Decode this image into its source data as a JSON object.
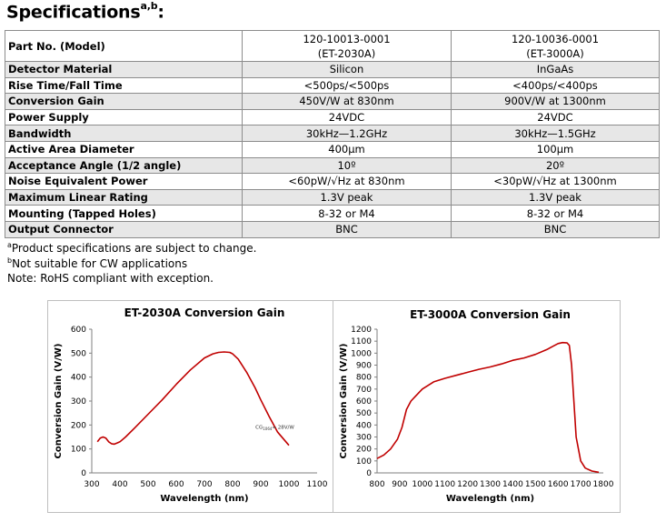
{
  "heading": {
    "title": "Specifications",
    "superscript": "a,b",
    "colon": ":"
  },
  "table": {
    "rows": [
      {
        "param": "Part No. (Model)",
        "col1": [
          "120-10013-0001",
          "(ET-2030A)"
        ],
        "col2": [
          "120-10036-0001",
          "(ET-3000A)"
        ]
      },
      {
        "param": "Detector Material",
        "col1": "Silicon",
        "col2": "InGaAs"
      },
      {
        "param": "Rise Time/Fall Time",
        "col1": "<500ps/<500ps",
        "col2": "<400ps/<400ps"
      },
      {
        "param": "Conversion Gain",
        "col1": "450V/W at 830nm",
        "col2": "900V/W at 1300nm"
      },
      {
        "param": "Power Supply",
        "col1": "24VDC",
        "col2": "24VDC"
      },
      {
        "param": "Bandwidth",
        "col1": "30kHz—1.2GHz",
        "col2": "30kHz—1.5GHz"
      },
      {
        "param": "Active Area Diameter",
        "col1": "400µm",
        "col2": "100µm"
      },
      {
        "param": "Acceptance Angle (1/2 angle)",
        "col1": "10º",
        "col2": "20º"
      },
      {
        "param": "Noise Equivalent Power",
        "col1": "<60pW/√Hz at 830nm",
        "col2": "<30pW/√Hz at 1300nm"
      },
      {
        "param": "Maximum Linear Rating",
        "col1": "1.3V peak",
        "col2": "1.3V peak"
      },
      {
        "param": "Mounting (Tapped Holes)",
        "col1": "8-32 or M4",
        "col2": "8-32 or M4"
      },
      {
        "param": "Output Connector",
        "col1": "BNC",
        "col2": "BNC"
      }
    ]
  },
  "notes": {
    "a": {
      "mark": "a",
      "text": "Product specifications are subject to change."
    },
    "b": {
      "mark": "b",
      "text": "Not suitable for CW applications"
    },
    "c": {
      "text": "Note: RoHS compliant with exception."
    }
  },
  "chart_data": [
    {
      "type": "line",
      "title": "ET-2030A Conversion Gain",
      "xlabel": "Wavelength (nm)",
      "ylabel": "Conversion Gain (V/W)",
      "xlim": [
        300,
        1100
      ],
      "ylim": [
        0,
        600
      ],
      "xticks": [
        300,
        400,
        500,
        600,
        700,
        800,
        900,
        1000,
        1100
      ],
      "yticks": [
        0,
        100,
        200,
        300,
        400,
        500,
        600
      ],
      "grid": false,
      "color": "#c00000",
      "annotation": {
        "text": "CG",
        "sub": "1064",
        "text2": "= 28V/W",
        "x": 950,
        "y": 185
      },
      "series": [
        {
          "x": [
            320,
            330,
            340,
            350,
            360,
            370,
            380,
            390,
            400,
            420,
            450,
            500,
            550,
            600,
            650,
            700,
            730,
            750,
            770,
            790,
            800,
            820,
            850,
            880,
            900,
            930,
            960,
            1000
          ],
          "y": [
            130,
            145,
            150,
            145,
            130,
            122,
            120,
            125,
            130,
            150,
            185,
            245,
            305,
            370,
            430,
            480,
            497,
            503,
            505,
            503,
            497,
            475,
            420,
            355,
            305,
            235,
            170,
            115
          ]
        }
      ]
    },
    {
      "type": "line",
      "title": "ET-3000A Conversion Gain",
      "xlabel": "Wavelength (nm)",
      "ylabel": "Conversion Gain (V/W)",
      "xlim": [
        800,
        1800
      ],
      "ylim": [
        0,
        1200
      ],
      "xticks": [
        800,
        900,
        1000,
        1100,
        1200,
        1300,
        1400,
        1500,
        1600,
        1700,
        1800
      ],
      "yticks": [
        0,
        100,
        200,
        300,
        400,
        500,
        600,
        700,
        800,
        900,
        1000,
        1100,
        1200
      ],
      "grid": false,
      "color": "#c00000",
      "series": [
        {
          "x": [
            800,
            830,
            860,
            890,
            910,
            930,
            950,
            970,
            1000,
            1050,
            1100,
            1150,
            1200,
            1250,
            1300,
            1350,
            1400,
            1450,
            1500,
            1550,
            1580,
            1600,
            1620,
            1640,
            1650,
            1660,
            1670,
            1680,
            1700,
            1720,
            1750,
            1780
          ],
          "y": [
            120,
            150,
            200,
            280,
            380,
            530,
            600,
            640,
            700,
            760,
            790,
            815,
            840,
            865,
            885,
            910,
            940,
            960,
            990,
            1030,
            1060,
            1080,
            1088,
            1085,
            1065,
            900,
            600,
            300,
            100,
            40,
            15,
            5
          ]
        }
      ]
    }
  ]
}
